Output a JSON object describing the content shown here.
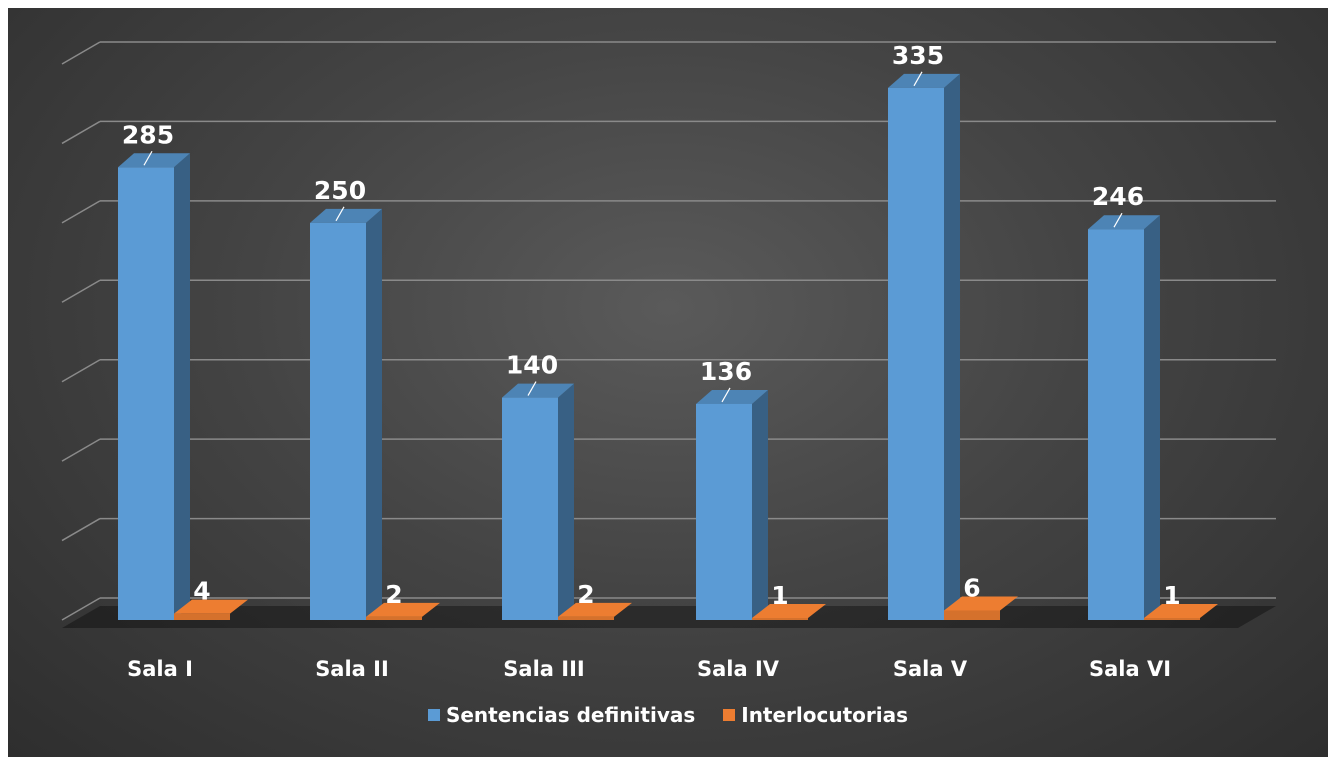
{
  "chart_data": {
    "type": "bar",
    "categories": [
      "Sala I",
      "Sala II",
      "Sala III",
      "Sala IV",
      "Sala V",
      "Sala VI"
    ],
    "series": [
      {
        "name": "Sentencias definitivas",
        "values": [
          285,
          250,
          140,
          136,
          335,
          246
        ],
        "color": "#5b9bd5"
      },
      {
        "name": "Interlocutorias",
        "values": [
          4,
          2,
          2,
          1,
          6,
          1
        ],
        "color": "#ed7d31"
      }
    ],
    "title": "",
    "xlabel": "",
    "ylabel": "",
    "ylim": [
      0,
      350
    ],
    "grid": true,
    "legend": "bottom",
    "style": "3d-column"
  }
}
